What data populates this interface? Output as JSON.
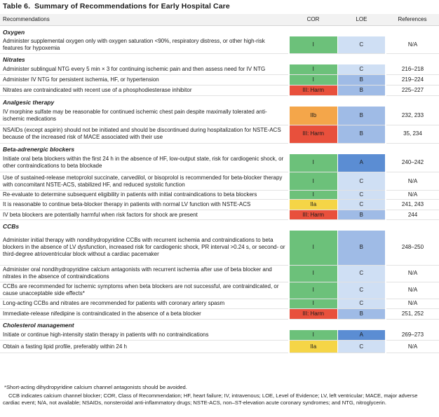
{
  "title": {
    "number": "Table 6.",
    "text": "Summary of Recommendations for Early Hospital Care"
  },
  "headers": {
    "recommendations": "Recommendations",
    "cor": "COR",
    "loe": "LOE",
    "references": "References"
  },
  "colors": {
    "I": "#6cc17a",
    "IIa": "#f5d547",
    "IIb": "#f4a64a",
    "III: Harm": "#e8503c",
    "A": "#5b8dd3",
    "B": "#9fbbe6",
    "C": "#cfdff4",
    "header_bg": "#f2f2f2"
  },
  "sections": [
    {
      "title": "Oxygen",
      "rows": [
        {
          "text": "Administer supplemental oxygen only with oxygen saturation <90%, respiratory distress, or other high-risk features for hypoxemia",
          "cor": "I",
          "loe": "C",
          "refs": "N/A"
        }
      ]
    },
    {
      "title": "Nitrates",
      "rows": [
        {
          "text": "Administer sublingual NTG every 5 min × 3 for continuing ischemic pain and then assess need for IV NTG",
          "cor": "I",
          "loe": "C",
          "refs": "216–218"
        },
        {
          "text": "Administer IV NTG for persistent ischemia, HF, or hypertension",
          "cor": "I",
          "loe": "B",
          "refs": "219–224"
        },
        {
          "text": "Nitrates are contraindicated with recent use of a phosphodiesterase inhibitor",
          "cor": "III: Harm",
          "loe": "B",
          "refs": "225–227"
        }
      ]
    },
    {
      "title": "Analgesic therapy",
      "rows": [
        {
          "text": "IV morphine sulfate may be reasonable for continued ischemic chest pain despite maximally tolerated anti-ischemic medications",
          "cor": "IIb",
          "loe": "B",
          "refs": "232, 233"
        },
        {
          "text": "NSAIDs (except aspirin) should not be initiated and should be discontinued during hospitalization for NSTE-ACS because of the increased risk of MACE associated with their use",
          "cor": "III: Harm",
          "loe": "B",
          "refs": "35, 234"
        }
      ]
    },
    {
      "title": "Beta-adrenergic blockers",
      "rows": [
        {
          "text": "Initiate oral beta blockers within the first 24 h in the absence of HF, low-output state, risk for cardiogenic shock, or other contraindications to beta blockade",
          "cor": "I",
          "loe": "A",
          "refs": "240–242"
        },
        {
          "text": "Use of sustained-release metoprolol succinate, carvedilol, or bisoprolol is recommended for beta-blocker therapy with concomitant NSTE-ACS, stabilized HF, and reduced systolic function",
          "cor": "I",
          "loe": "C",
          "refs": "N/A"
        },
        {
          "text": "Re-evaluate to determine subsequent eligibility in patients with initial contraindications to beta blockers",
          "cor": "I",
          "loe": "C",
          "refs": "N/A"
        },
        {
          "text": "It is reasonable to continue beta-blocker therapy in patients with normal LV function with NSTE-ACS",
          "cor": "IIa",
          "loe": "C",
          "refs": "241, 243"
        },
        {
          "text": "IV beta blockers are potentially harmful when risk factors for shock are present",
          "cor": "III: Harm",
          "loe": "B",
          "refs": "244"
        }
      ]
    },
    {
      "title": "CCBs",
      "rows": [
        {
          "text": "Administer initial therapy with nondihydropyridine CCBs with recurrent ischemia and contraindications to beta blockers in the absence of LV dysfunction, increased risk for cardiogenic shock, PR interval >0.24 s, or second- or third-degree atrioventricular block without a cardiac pacemaker",
          "cor": "I",
          "loe": "B",
          "refs": "248–250"
        },
        {
          "text": "Administer oral nondihydropyridine calcium antagonists with recurrent ischemia after use of beta blocker and nitrates in the absence of contraindications",
          "cor": "I",
          "loe": "C",
          "refs": "N/A"
        },
        {
          "text": "CCBs are recommended for ischemic symptoms when beta blockers are not successful, are contraindicated, or cause unacceptable side effects*",
          "cor": "I",
          "loe": "C",
          "refs": "N/A"
        },
        {
          "text": "Long-acting CCBs and nitrates are recommended for patients with coronary artery spasm",
          "cor": "I",
          "loe": "C",
          "refs": "N/A"
        },
        {
          "text": "Immediate-release nifedipine is contraindicated in the absence of a beta blocker",
          "cor": "III: Harm",
          "loe": "B",
          "refs": "251, 252"
        }
      ]
    },
    {
      "title": "Cholesterol management",
      "rows": [
        {
          "text": "Initiate or continue high-intensity statin therapy in patients with no contraindications",
          "cor": "I",
          "loe": "A",
          "refs": "269–273"
        },
        {
          "text": "Obtain a fasting lipid profile, preferably within 24 h",
          "cor": "IIa",
          "loe": "C",
          "refs": "N/A"
        }
      ]
    }
  ],
  "footnote": "*Short-acting dihydropyridine calcium channel antagonists should be avoided.",
  "abbreviations": "CCB indicates calcium channel blocker; COR, Class of Recommendation; HF, heart failure; IV, intravenous; LOE, Level of Evidence; LV, left ventricular; MACE, major adverse cardiac event; N/A, not available; NSAIDs, nonsteroidal anti-inflammatory drugs; NSTE-ACS, non–ST-elevation acute coronary syndromes; and NTG, nitroglycerin."
}
